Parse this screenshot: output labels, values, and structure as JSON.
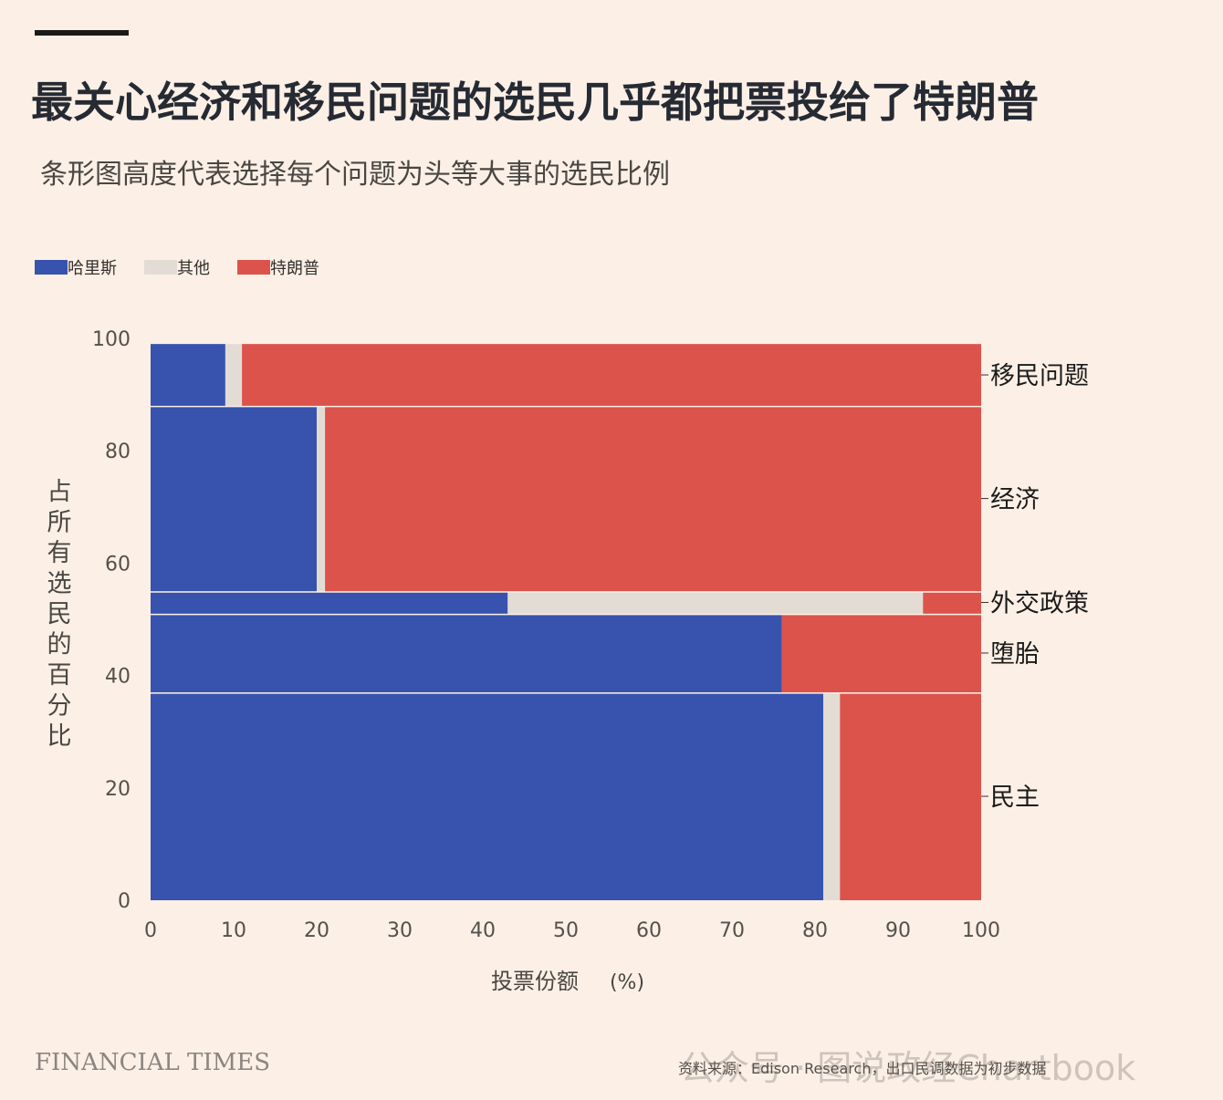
{
  "title": "最关心经济和移民问题的选民几乎都把票投给了特朗普",
  "subtitle": "条形图高度代表选择每个问题为头等大事的选民比例",
  "legend": [
    {
      "label": "哈里斯",
      "color": "#3753ae"
    },
    {
      "label": "其他",
      "color": "#e3dcd5"
    },
    {
      "label": "特朗普",
      "color": "#dc534b"
    }
  ],
  "chart_data": {
    "type": "bar",
    "subtype": "marimekko",
    "xlabel": "投票份额",
    "xunit": "(%)",
    "ylabel": "占所有选民的百分比",
    "xlim": [
      0,
      100
    ],
    "ylim": [
      0,
      100
    ],
    "xticks": [
      0,
      10,
      20,
      30,
      40,
      50,
      60,
      70,
      80,
      90,
      100
    ],
    "yticks": [
      0,
      20,
      40,
      60,
      80,
      100
    ],
    "categories": [
      "民主",
      "堕胎",
      "外交政策",
      "经济",
      "移民问题"
    ],
    "heights": [
      37,
      14,
      4,
      33,
      11
    ],
    "series": [
      {
        "name": "哈里斯",
        "values": [
          81,
          76,
          43,
          20,
          9
        ]
      },
      {
        "name": "其他",
        "values": [
          2,
          0,
          50,
          1,
          2
        ]
      },
      {
        "name": "特朗普",
        "values": [
          17,
          24,
          7,
          79,
          89
        ]
      }
    ]
  },
  "footer": {
    "logo": "FINANCIAL TIMES",
    "source": "资料来源：Edison Research，出口民调数据为初步数据",
    "watermark": "公众号 · 图说政经Chartbook"
  }
}
